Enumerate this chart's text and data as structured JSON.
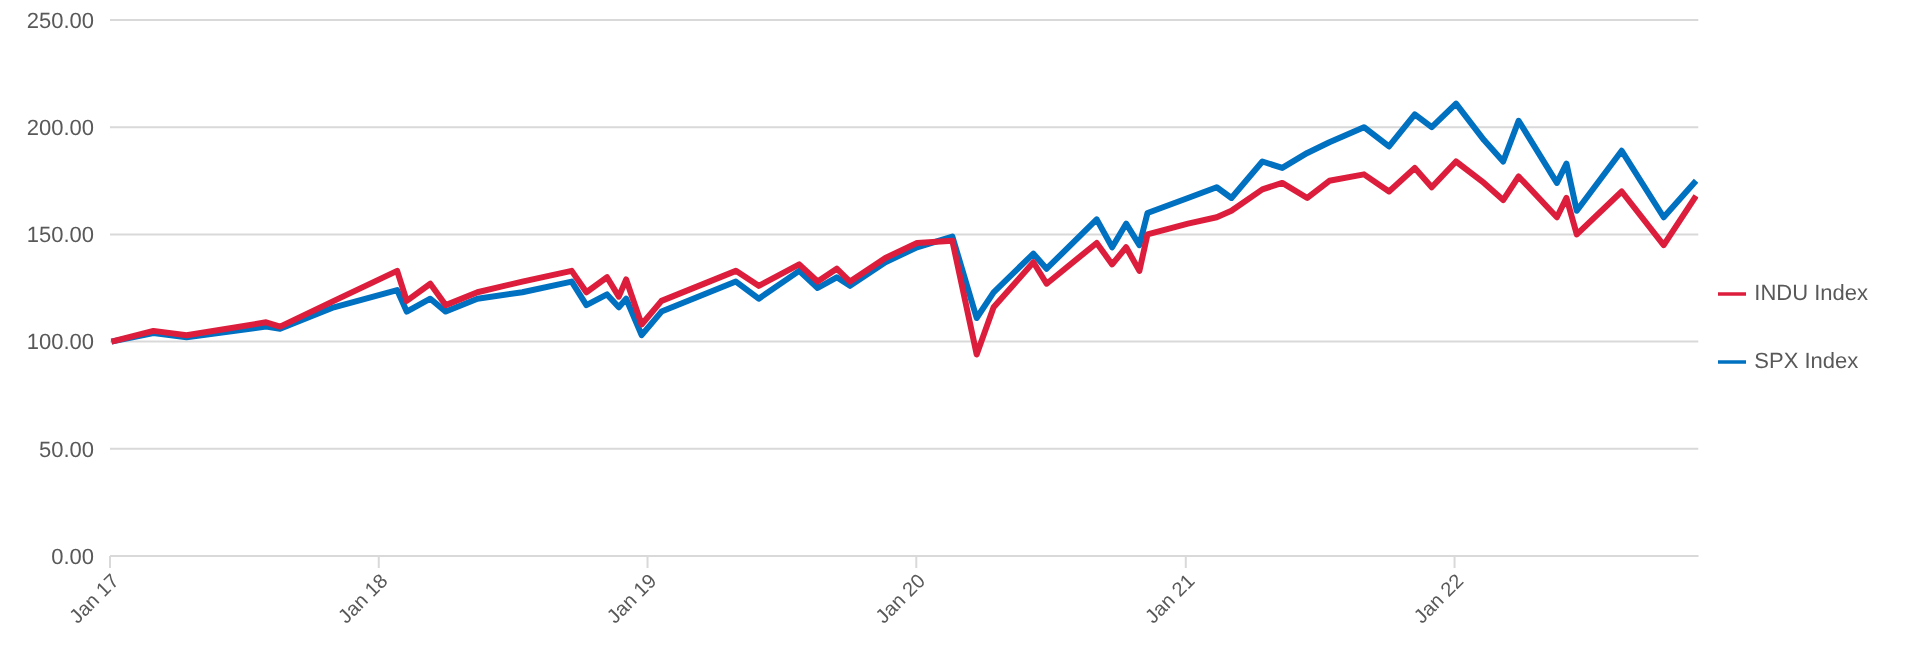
{
  "chart_data": {
    "type": "line",
    "x": [
      "2017-01-03",
      "2017-03-01",
      "2017-04-15",
      "2017-08-01",
      "2017-08-20",
      "2017-11-01",
      "2018-01-26",
      "2018-02-08",
      "2018-03-12",
      "2018-04-02",
      "2018-05-15",
      "2018-07-15",
      "2018-09-20",
      "2018-10-10",
      "2018-11-07",
      "2018-11-23",
      "2018-12-03",
      "2018-12-24",
      "2019-01-20",
      "2019-05-01",
      "2019-06-01",
      "2019-07-26",
      "2019-08-20",
      "2019-09-15",
      "2019-10-03",
      "2019-11-20",
      "2020-01-02",
      "2020-02-19",
      "2020-03-23",
      "2020-04-15",
      "2020-06-08",
      "2020-06-26",
      "2020-09-02",
      "2020-09-23",
      "2020-10-12",
      "2020-10-30",
      "2020-11-10",
      "2021-01-04",
      "2021-02-12",
      "2021-03-04",
      "2021-04-15",
      "2021-05-12",
      "2021-06-15",
      "2021-07-15",
      "2021-08-31",
      "2021-10-04",
      "2021-11-08",
      "2021-12-01",
      "2022-01-03",
      "2022-02-10",
      "2022-03-08",
      "2022-03-29",
      "2022-05-20",
      "2022-06-02",
      "2022-06-16",
      "2022-08-16",
      "2022-10-12",
      "2022-11-25"
    ],
    "series": [
      {
        "name": "SPX Index",
        "color": "#0070c0",
        "values": [
          100,
          104,
          102,
          107,
          106,
          116,
          124,
          114,
          120,
          114,
          120,
          123,
          128,
          117,
          122,
          116,
          120,
          103,
          114,
          128,
          120,
          133,
          125,
          130,
          126,
          137,
          144,
          149,
          111,
          123,
          141,
          134,
          157,
          144,
          155,
          145,
          160,
          167,
          172,
          167,
          184,
          181,
          188,
          193,
          200,
          191,
          206,
          200,
          211,
          194,
          184,
          203,
          174,
          183,
          161,
          189,
          158,
          175
        ]
      },
      {
        "name": "INDU Index",
        "color": "#dc1e3c",
        "values": [
          100,
          105,
          103,
          109,
          107,
          119,
          133,
          119,
          127,
          117,
          123,
          128,
          133,
          123,
          130,
          121,
          129,
          108,
          119,
          133,
          126,
          136,
          128,
          134,
          128,
          139,
          146,
          147,
          94,
          116,
          137,
          127,
          146,
          136,
          144,
          133,
          150,
          155,
          158,
          161,
          171,
          174,
          167,
          175,
          178,
          170,
          181,
          172,
          184,
          174,
          166,
          177,
          158,
          167,
          150,
          170,
          145,
          168
        ]
      }
    ],
    "xlim": [
      "2017-01-01",
      "2022-11-28"
    ],
    "xticks": [
      {
        "value": "2017-01-01",
        "label": "Jan 17"
      },
      {
        "value": "2018-01-01",
        "label": "Jan 18"
      },
      {
        "value": "2019-01-01",
        "label": "Jan 19"
      },
      {
        "value": "2020-01-01",
        "label": "Jan 20"
      },
      {
        "value": "2021-01-01",
        "label": "Jan 21"
      },
      {
        "value": "2022-01-01",
        "label": "Jan 22"
      }
    ],
    "ylim": [
      0,
      250
    ],
    "yticks": [
      {
        "value": 0,
        "label": "0.00"
      },
      {
        "value": 50,
        "label": "50.00"
      },
      {
        "value": 100,
        "label": "100.00"
      },
      {
        "value": 150,
        "label": "150.00"
      },
      {
        "value": 200,
        "label": "200.00"
      },
      {
        "value": 250,
        "label": "250.00"
      }
    ],
    "grid": "y",
    "legend": "right"
  }
}
